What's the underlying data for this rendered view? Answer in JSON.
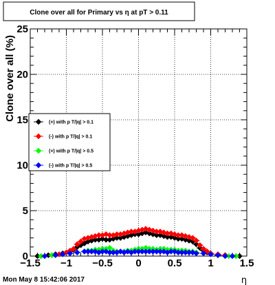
{
  "chart_data": {
    "type": "scatter",
    "title": "Clone  over all for Primary vs   η at pT > 0.11",
    "xlabel": "η",
    "ylabel": "Clone  over all (%)",
    "xlim": [
      -1.5,
      1.5
    ],
    "ylim": [
      0,
      25
    ],
    "x_ticks": [
      -1.5,
      -1,
      -0.5,
      0,
      0.5,
      1,
      1.5
    ],
    "x_tick_labels": [
      "−1.5",
      "−1",
      "−0.5",
      "0",
      "0.5",
      "1",
      "1.5"
    ],
    "y_ticks": [
      0,
      5,
      10,
      15,
      20,
      25
    ],
    "y_tick_labels": [
      "0",
      "5",
      "10",
      "15",
      "20",
      "25"
    ],
    "grid": true,
    "legend_position": "middle-left",
    "series": [
      {
        "name": "(+) with p T/|q| > 0.1",
        "color": "#000000",
        "points": [
          [
            -1.4,
            0.0
          ],
          [
            -1.25,
            0.1
          ],
          [
            -1.15,
            0.2
          ],
          [
            -1.05,
            0.3
          ],
          [
            -0.95,
            0.5
          ],
          [
            -0.9,
            0.7
          ],
          [
            -0.85,
            1.0
          ],
          [
            -0.8,
            1.2
          ],
          [
            -0.75,
            1.4
          ],
          [
            -0.7,
            1.6
          ],
          [
            -0.65,
            1.7
          ],
          [
            -0.6,
            1.8
          ],
          [
            -0.55,
            1.8
          ],
          [
            -0.5,
            1.9
          ],
          [
            -0.45,
            1.8
          ],
          [
            -0.4,
            1.8
          ],
          [
            -0.35,
            1.9
          ],
          [
            -0.3,
            2.0
          ],
          [
            -0.25,
            2.0
          ],
          [
            -0.2,
            2.1
          ],
          [
            -0.15,
            2.2
          ],
          [
            -0.1,
            2.3
          ],
          [
            -0.05,
            2.4
          ],
          [
            0.0,
            2.4
          ],
          [
            0.05,
            2.5
          ],
          [
            0.1,
            2.6
          ],
          [
            0.15,
            2.5
          ],
          [
            0.2,
            2.4
          ],
          [
            0.25,
            2.3
          ],
          [
            0.3,
            2.3
          ],
          [
            0.35,
            2.2
          ],
          [
            0.4,
            2.1
          ],
          [
            0.45,
            2.1
          ],
          [
            0.5,
            2.0
          ],
          [
            0.55,
            1.9
          ],
          [
            0.6,
            1.9
          ],
          [
            0.65,
            1.8
          ],
          [
            0.7,
            1.7
          ],
          [
            0.75,
            1.6
          ],
          [
            0.8,
            1.3
          ],
          [
            0.85,
            0.9
          ],
          [
            0.9,
            0.6
          ],
          [
            0.95,
            0.4
          ],
          [
            1.0,
            0.3
          ],
          [
            1.1,
            0.1
          ],
          [
            1.2,
            0.1
          ],
          [
            1.3,
            0.0
          ],
          [
            1.4,
            0.0
          ]
        ]
      },
      {
        "name": "(-) with p T/|q| > 0.1",
        "color": "#ff0000",
        "points": [
          [
            -1.35,
            0.0
          ],
          [
            -1.2,
            0.1
          ],
          [
            -1.1,
            0.2
          ],
          [
            -1.0,
            0.4
          ],
          [
            -0.95,
            0.6
          ],
          [
            -0.9,
            0.8
          ],
          [
            -0.85,
            1.3
          ],
          [
            -0.8,
            1.6
          ],
          [
            -0.75,
            1.9
          ],
          [
            -0.7,
            2.0
          ],
          [
            -0.65,
            2.1
          ],
          [
            -0.6,
            2.2
          ],
          [
            -0.55,
            2.3
          ],
          [
            -0.5,
            2.3
          ],
          [
            -0.45,
            2.4
          ],
          [
            -0.4,
            2.3
          ],
          [
            -0.35,
            2.3
          ],
          [
            -0.3,
            2.4
          ],
          [
            -0.25,
            2.4
          ],
          [
            -0.2,
            2.5
          ],
          [
            -0.15,
            2.6
          ],
          [
            -0.1,
            2.7
          ],
          [
            -0.05,
            2.7
          ],
          [
            0.0,
            2.8
          ],
          [
            0.05,
            2.9
          ],
          [
            0.1,
            3.0
          ],
          [
            0.15,
            2.9
          ],
          [
            0.2,
            2.8
          ],
          [
            0.25,
            2.7
          ],
          [
            0.3,
            2.7
          ],
          [
            0.35,
            2.6
          ],
          [
            0.4,
            2.5
          ],
          [
            0.45,
            2.5
          ],
          [
            0.5,
            2.4
          ],
          [
            0.55,
            2.3
          ],
          [
            0.6,
            2.3
          ],
          [
            0.65,
            2.2
          ],
          [
            0.7,
            2.1
          ],
          [
            0.75,
            2.0
          ],
          [
            0.8,
            1.7
          ],
          [
            0.85,
            1.2
          ],
          [
            0.9,
            0.8
          ],
          [
            0.95,
            0.5
          ],
          [
            1.0,
            0.3
          ],
          [
            1.1,
            0.2
          ],
          [
            1.2,
            0.1
          ],
          [
            1.3,
            0.0
          ],
          [
            1.35,
            0.0
          ]
        ]
      },
      {
        "name": "(+) with p T/|q| > 0.5",
        "color": "#00ff00",
        "points": [
          [
            -1.35,
            0.0
          ],
          [
            -1.2,
            0.1
          ],
          [
            -1.05,
            0.2
          ],
          [
            -0.95,
            0.3
          ],
          [
            -0.85,
            0.4
          ],
          [
            -0.75,
            0.5
          ],
          [
            -0.7,
            0.6
          ],
          [
            -0.65,
            0.6
          ],
          [
            -0.6,
            0.7
          ],
          [
            -0.55,
            0.7
          ],
          [
            -0.5,
            0.8
          ],
          [
            -0.45,
            0.8
          ],
          [
            -0.4,
            0.9
          ],
          [
            -0.35,
            0.6
          ],
          [
            -0.3,
            0.5
          ],
          [
            -0.25,
            0.5
          ],
          [
            -0.2,
            0.5
          ],
          [
            -0.15,
            0.6
          ],
          [
            -0.1,
            0.6
          ],
          [
            -0.05,
            0.7
          ],
          [
            0.0,
            0.8
          ],
          [
            0.05,
            0.8
          ],
          [
            0.1,
            0.9
          ],
          [
            0.15,
            0.8
          ],
          [
            0.2,
            0.8
          ],
          [
            0.25,
            0.7
          ],
          [
            0.3,
            0.8
          ],
          [
            0.35,
            0.8
          ],
          [
            0.4,
            0.7
          ],
          [
            0.45,
            0.7
          ],
          [
            0.5,
            0.7
          ],
          [
            0.55,
            0.6
          ],
          [
            0.6,
            0.6
          ],
          [
            0.65,
            0.6
          ],
          [
            0.7,
            0.5
          ],
          [
            0.75,
            0.5
          ],
          [
            0.8,
            0.4
          ],
          [
            0.9,
            0.3
          ],
          [
            1.0,
            0.2
          ],
          [
            1.1,
            0.1
          ],
          [
            1.25,
            0.0
          ],
          [
            1.35,
            0.0
          ]
        ]
      },
      {
        "name": "(-) with p T/|q| > 0.5",
        "color": "#0000ff",
        "points": [
          [
            -1.3,
            0.0
          ],
          [
            -1.15,
            0.1
          ],
          [
            -1.05,
            0.2
          ],
          [
            -0.95,
            0.3
          ],
          [
            -0.85,
            0.4
          ],
          [
            -0.75,
            0.5
          ],
          [
            -0.7,
            0.5
          ],
          [
            -0.65,
            0.5
          ],
          [
            -0.6,
            0.5
          ],
          [
            -0.55,
            0.4
          ],
          [
            -0.5,
            0.5
          ],
          [
            -0.45,
            0.5
          ],
          [
            -0.4,
            0.4
          ],
          [
            -0.35,
            0.4
          ],
          [
            -0.3,
            0.4
          ],
          [
            -0.25,
            0.5
          ],
          [
            -0.2,
            0.4
          ],
          [
            -0.15,
            0.5
          ],
          [
            -0.1,
            0.4
          ],
          [
            -0.05,
            0.5
          ],
          [
            0.0,
            0.5
          ],
          [
            0.05,
            0.5
          ],
          [
            0.1,
            0.5
          ],
          [
            0.15,
            0.5
          ],
          [
            0.2,
            0.5
          ],
          [
            0.25,
            0.5
          ],
          [
            0.3,
            0.5
          ],
          [
            0.35,
            0.5
          ],
          [
            0.4,
            0.4
          ],
          [
            0.45,
            0.5
          ],
          [
            0.5,
            0.5
          ],
          [
            0.55,
            0.4
          ],
          [
            0.6,
            0.4
          ],
          [
            0.65,
            0.4
          ],
          [
            0.7,
            0.4
          ],
          [
            0.75,
            0.4
          ],
          [
            0.8,
            0.3
          ],
          [
            0.9,
            0.3
          ],
          [
            1.0,
            0.2
          ],
          [
            1.1,
            0.1
          ],
          [
            1.2,
            0.0
          ],
          [
            1.3,
            0.0
          ]
        ]
      }
    ]
  },
  "footer": {
    "timestamp": "Mon May  8 15:42:06 2017"
  }
}
